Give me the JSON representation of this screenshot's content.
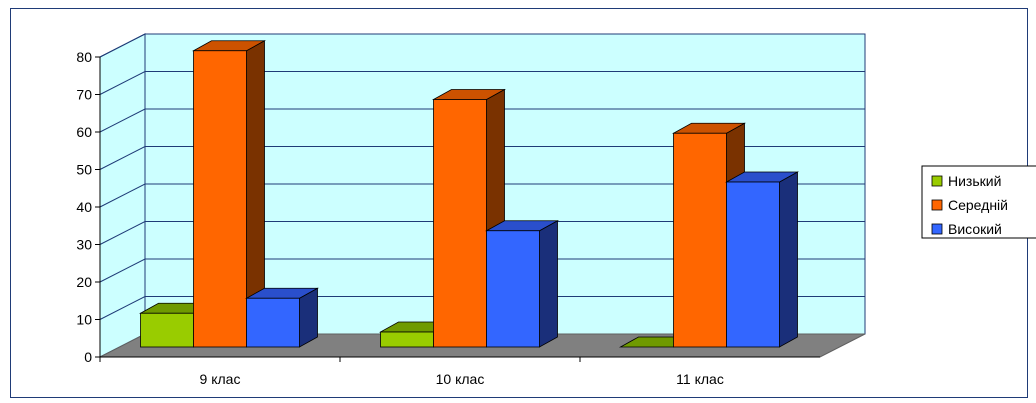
{
  "chart_data": {
    "type": "bar",
    "categories": [
      "9  клас",
      "10 клас",
      "11 клас"
    ],
    "series": [
      {
        "name": "Низький",
        "values": [
          9,
          4,
          0
        ],
        "color": "#99cc00",
        "top_color": "#6f9a00",
        "side_color": "#4f6f00"
      },
      {
        "name": "Середній",
        "values": [
          79,
          66,
          57
        ],
        "color": "#ff6600",
        "top_color": "#cc5200",
        "side_color": "#7a3200"
      },
      {
        "name": "Високий",
        "values": [
          13,
          31,
          44
        ],
        "color": "#3366ff",
        "top_color": "#2a4fcc",
        "side_color": "#1a2f7a"
      }
    ],
    "y_ticks": [
      0,
      10,
      20,
      30,
      40,
      50,
      60,
      70,
      80
    ],
    "ylim": [
      0,
      80
    ],
    "grid": true,
    "legend_position": "right",
    "colors": {
      "plot_wall": "#ccffff",
      "floor": "#808080",
      "gridline": "#1f3b77",
      "frame": "#1f3b77"
    }
  }
}
